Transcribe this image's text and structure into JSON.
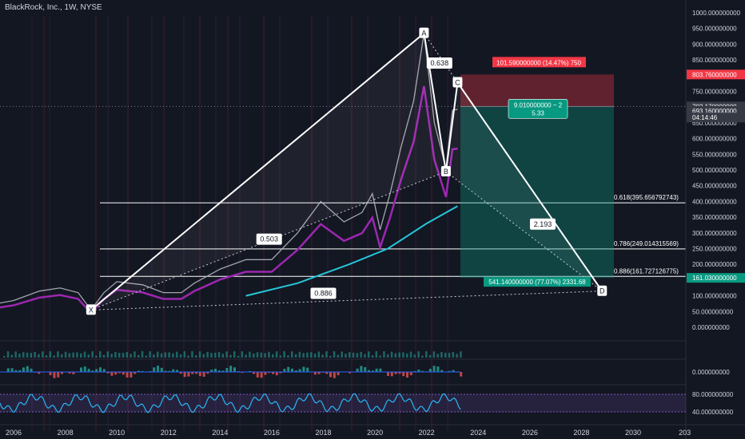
{
  "header": {
    "title": "BlackRock, Inc., 1W, NYSE"
  },
  "chart_data": {
    "type": "line",
    "x_axis": {
      "ticks": [
        "2006",
        "2008",
        "2010",
        "2012",
        "2014",
        "2016",
        "2018",
        "2020",
        "2022",
        "2024",
        "2026",
        "2028",
        "2030",
        "203"
      ]
    },
    "y_axis": {
      "range": [
        0,
        1000
      ],
      "ticks": [
        "1000.000000000",
        "950.000000000",
        "900.000000000",
        "850.000000000",
        "800.000000000",
        "750.000000000",
        "700.000000000",
        "650.000000000",
        "600.000000000",
        "550.000000000",
        "500.000000000",
        "450.000000000",
        "400.000000000",
        "350.000000000",
        "300.000000000",
        "250.000000000",
        "200.000000000",
        "150.000000000",
        "100.000000000",
        "50.000000000",
        "0.000000000"
      ]
    },
    "price_series": [
      {
        "x": 2005.0,
        "y": 70
      },
      {
        "x": 2006.0,
        "y": 85
      },
      {
        "x": 2007.0,
        "y": 115
      },
      {
        "x": 2007.8,
        "y": 125
      },
      {
        "x": 2008.5,
        "y": 110
      },
      {
        "x": 2009.0,
        "y": 55
      },
      {
        "x": 2009.5,
        "y": 110
      },
      {
        "x": 2010.0,
        "y": 145
      },
      {
        "x": 2011.0,
        "y": 135
      },
      {
        "x": 2011.8,
        "y": 110
      },
      {
        "x": 2012.5,
        "y": 110
      },
      {
        "x": 2013.0,
        "y": 140
      },
      {
        "x": 2014.0,
        "y": 185
      },
      {
        "x": 2015.0,
        "y": 215
      },
      {
        "x": 2016.0,
        "y": 215
      },
      {
        "x": 2017.0,
        "y": 300
      },
      {
        "x": 2017.9,
        "y": 400
      },
      {
        "x": 2018.8,
        "y": 335
      },
      {
        "x": 2019.5,
        "y": 365
      },
      {
        "x": 2019.9,
        "y": 425
      },
      {
        "x": 2020.2,
        "y": 310
      },
      {
        "x": 2020.6,
        "y": 430
      },
      {
        "x": 2021.0,
        "y": 570
      },
      {
        "x": 2021.5,
        "y": 720
      },
      {
        "x": 2021.9,
        "y": 935
      },
      {
        "x": 2022.3,
        "y": 650
      },
      {
        "x": 2022.75,
        "y": 505
      },
      {
        "x": 2023.0,
        "y": 690
      },
      {
        "x": 2023.2,
        "y": 693
      }
    ],
    "pattern_points": [
      {
        "label": "X",
        "x": 2009.0,
        "y": 55
      },
      {
        "label": "A",
        "x": 2021.9,
        "y": 935
      },
      {
        "label": "B",
        "x": 2022.75,
        "y": 495
      },
      {
        "label": "C",
        "x": 2023.2,
        "y": 778
      },
      {
        "label": "D",
        "x": 2028.8,
        "y": 115
      }
    ],
    "ratios": [
      {
        "label": "0.503",
        "x": 2015.9,
        "y": 280
      },
      {
        "label": "0.638",
        "x": 2022.5,
        "y": 840
      },
      {
        "label": "2.193",
        "x": 2026.5,
        "y": 328
      },
      {
        "label": "0.886",
        "x": 2018.0,
        "y": 108
      }
    ],
    "fib_levels": [
      {
        "label": "0.618(395.656792743)",
        "y": 395.66
      },
      {
        "label": "0.786(249.014315569)",
        "y": 249.01
      },
      {
        "label": "0.886(161.727126775)",
        "y": 161.73
      }
    ],
    "price_tags": [
      {
        "label": "803.760000000",
        "y": 803.76,
        "color": "#f23645"
      },
      {
        "label": "702.170000000",
        "y": 702.17,
        "color": "#363a45"
      },
      {
        "label": "693.160000000",
        "y": 688,
        "color": "#363a45"
      },
      {
        "label": "04:14:46",
        "y": 667,
        "color": "#363a45"
      },
      {
        "label": "161.030000000",
        "y": 157,
        "color": "#089981"
      }
    ],
    "risk_label": "101.590000000 (14.47%) 750",
    "ratio_label": [
      "9.010000000 ~ 2",
      "5.33"
    ],
    "reward_label": "541.140000000 (77.07%) 2331.68",
    "rsi_panel": {
      "ticks": [
        "80.000000000",
        "40.000000000"
      ]
    },
    "macd_panel": {
      "ticks": [
        "0.000000000"
      ]
    },
    "colors": {
      "background": "#131722",
      "profit": "#089981",
      "loss": "#f23645",
      "pattern": "#ffffff",
      "ma_purple": "#9c27b0",
      "ma_cyan": "#26c6da",
      "rsi": "#29b6f6"
    }
  }
}
